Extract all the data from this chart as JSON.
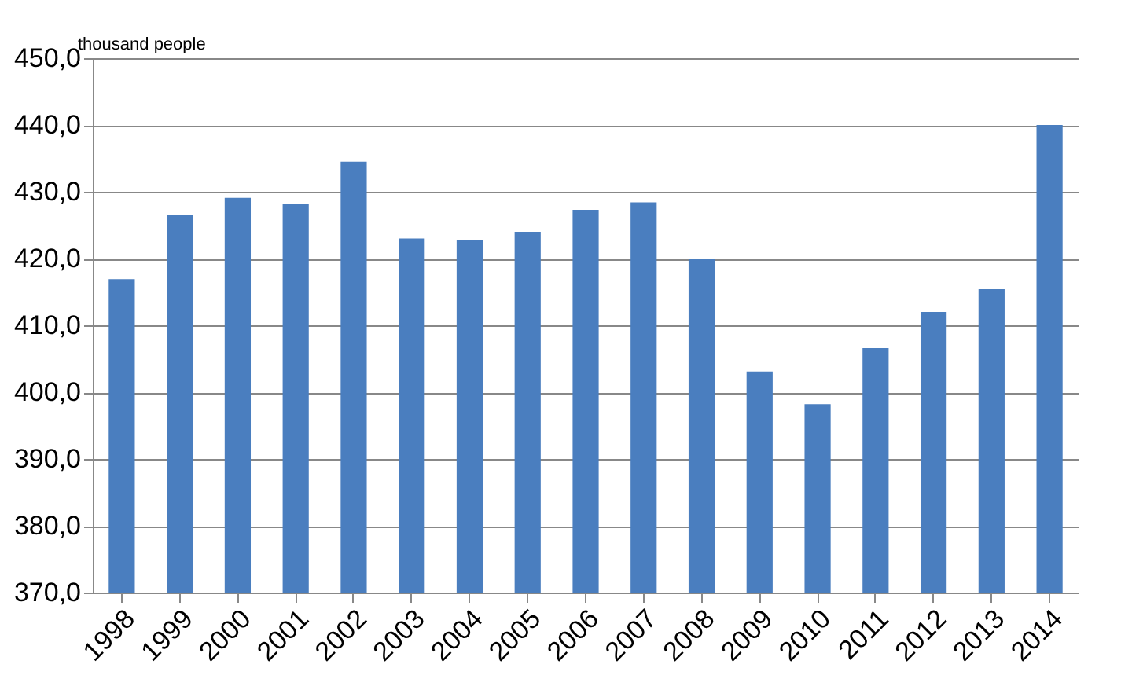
{
  "chart_data": {
    "type": "bar",
    "ylabel": "thousand people",
    "categories": [
      "1998",
      "1999",
      "2000",
      "2001",
      "2002",
      "2003",
      "2004",
      "2005",
      "2006",
      "2007",
      "2008",
      "2009",
      "2010",
      "2011",
      "2012",
      "2013",
      "2014"
    ],
    "values": [
      416.9,
      426.5,
      429.1,
      428.2,
      434.5,
      423.0,
      422.8,
      424.0,
      427.3,
      428.4,
      420.0,
      403.1,
      398.2,
      406.6,
      412.0,
      415.4,
      440.0
    ],
    "color": "#4a7ebf",
    "ylim": [
      370,
      450
    ],
    "yticks": [
      {
        "value": 370,
        "label": "370,0"
      },
      {
        "value": 380,
        "label": "380,0"
      },
      {
        "value": 390,
        "label": "390,0"
      },
      {
        "value": 400,
        "label": "400,0"
      },
      {
        "value": 410,
        "label": "410,0"
      },
      {
        "value": 420,
        "label": "420,0"
      },
      {
        "value": 430,
        "label": "430,0"
      },
      {
        "value": 440,
        "label": "440,0"
      },
      {
        "value": 450,
        "label": "450,0"
      }
    ],
    "grid": "y"
  }
}
